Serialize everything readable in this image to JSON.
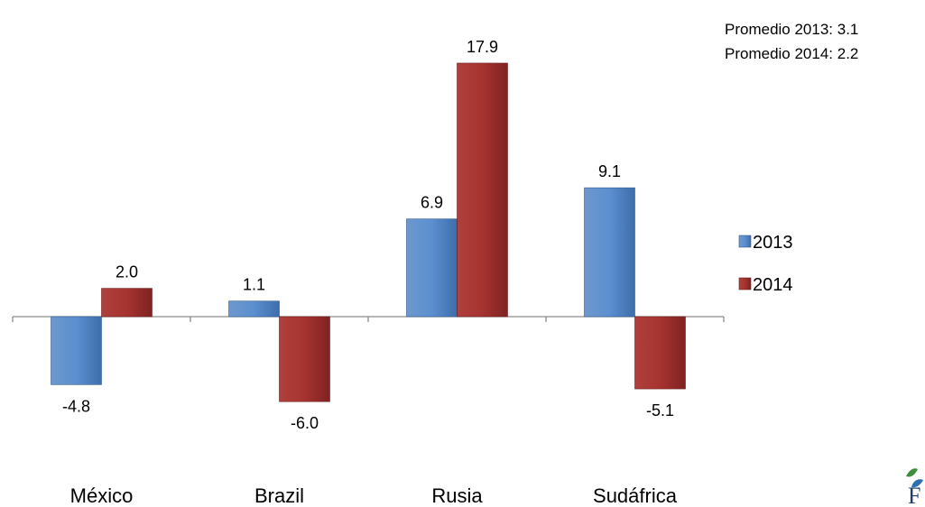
{
  "chart_data": {
    "type": "bar",
    "categories": [
      "México",
      "Brazil",
      "Rusia",
      "Sudáfrica"
    ],
    "series": [
      {
        "name": "2013",
        "values": [
          -4.8,
          1.1,
          6.9,
          9.1
        ],
        "color": "#4F81BD"
      },
      {
        "name": "2014",
        "values": [
          2.0,
          -6.0,
          17.9,
          -5.1
        ],
        "color": "#A5302E"
      }
    ],
    "data_labels": [
      [
        "-4.8",
        "1.1",
        "6.9",
        "9.1"
      ],
      [
        "2.0",
        "-6.0",
        "17.9",
        "-5.1"
      ]
    ],
    "ylim": [
      -12.5,
      22.4
    ],
    "grid": false,
    "legend_position": "right",
    "annotations": [
      "Promedio 2013: 3.1",
      "Promedio 2014: 2.2"
    ]
  },
  "logo": {
    "glyph": "F"
  }
}
